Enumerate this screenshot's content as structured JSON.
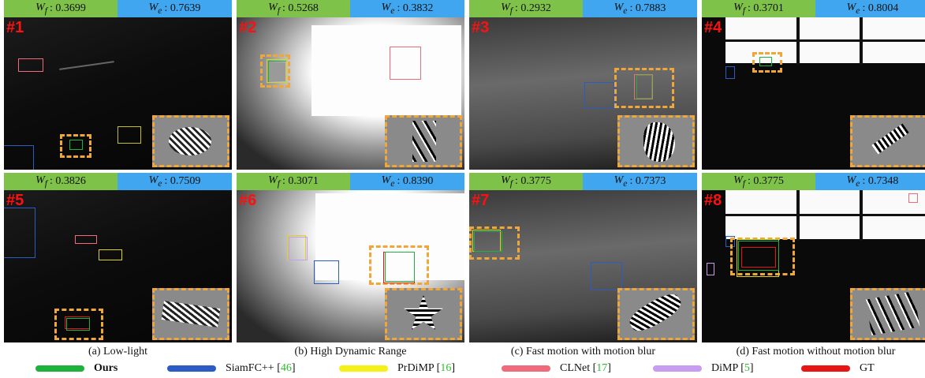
{
  "panels": [
    {
      "num": "#1",
      "wf_label": "W_f",
      "wf": ": 0.3699",
      "we_label": "W_e",
      "we": ": 0.7639"
    },
    {
      "num": "#2",
      "wf_label": "W_f",
      "wf": ": 0.5268",
      "we_label": "W_e",
      "we": ": 0.3832"
    },
    {
      "num": "#3",
      "wf_label": "W_f",
      "wf": ": 0.2932",
      "we_label": "W_e",
      "we": ": 0.7883"
    },
    {
      "num": "#4",
      "wf_label": "W_f",
      "wf": ": 0.3701",
      "we_label": "W_e",
      "we": ": 0.8004"
    },
    {
      "num": "#5",
      "wf_label": "W_f",
      "wf": ": 0.3826",
      "we_label": "W_e",
      "we": ": 0.7509"
    },
    {
      "num": "#6",
      "wf_label": "W_f",
      "wf": ": 0.3071",
      "we_label": "W_e",
      "we": ": 0.8390"
    },
    {
      "num": "#7",
      "wf_label": "W_f",
      "wf": ": 0.3775",
      "we_label": "W_e",
      "we": ": 0.7373"
    },
    {
      "num": "#8",
      "wf_label": "W_f",
      "wf": ": 0.3775",
      "we_label": "W_e",
      "we": ": 0.7348"
    }
  ],
  "captions": [
    "(a) Low-light",
    "(b) High Dynamic Range",
    "(c) Fast motion with motion blur",
    "(d) Fast motion without motion blur"
  ],
  "legend": [
    {
      "name": "Ours",
      "ref": "",
      "color": "#1db33a"
    },
    {
      "name": "SiamFC++ [",
      "ref": "46",
      "close": "]",
      "color": "#2b5cc4"
    },
    {
      "name": "PrDiMP [",
      "ref": "16",
      "close": "]",
      "color": "#f5f015"
    },
    {
      "name": "CLNet [",
      "ref": "17",
      "close": "]",
      "color": "#ef6a7a"
    },
    {
      "name": "DiMP [",
      "ref": "5",
      "close": "]",
      "color": "#c89cf0"
    },
    {
      "name": "GT",
      "ref": "",
      "color": "#e81515"
    }
  ],
  "colors": {
    "accent": "#f1a63a",
    "wf_bg": "#7ec24a",
    "we_bg": "#3fa6ef"
  }
}
